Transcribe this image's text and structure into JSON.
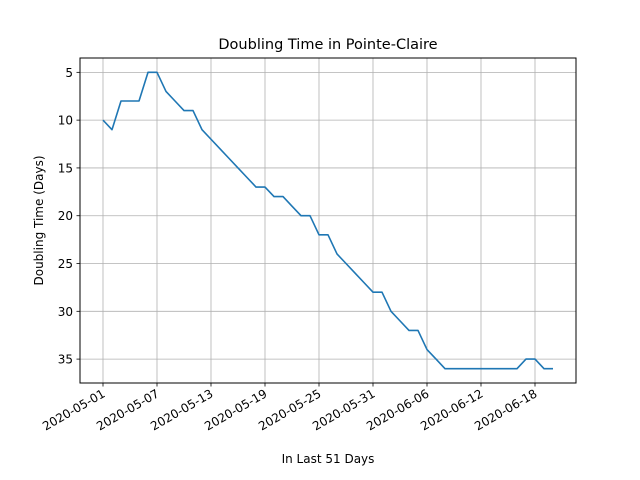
{
  "chart_data": {
    "type": "line",
    "title": "Doubling Time in  Pointe-Claire",
    "xlabel": "In Last 51 Days",
    "ylabel": "Doubling Time (Days)",
    "y_inverted": true,
    "ylim": [
      37.5,
      3.5
    ],
    "y_ticks": [
      5,
      10,
      15,
      20,
      25,
      30,
      35
    ],
    "x_ticks": [
      "2020-05-01",
      "2020-05-07",
      "2020-05-13",
      "2020-05-19",
      "2020-05-25",
      "2020-05-31",
      "2020-06-06",
      "2020-06-12",
      "2020-06-18"
    ],
    "grid": true,
    "series_color": "#1f77b4",
    "series": [
      {
        "x": [
          "2020-05-01",
          "2020-05-02",
          "2020-05-03",
          "2020-05-04",
          "2020-05-05",
          "2020-05-06",
          "2020-05-07",
          "2020-05-08",
          "2020-05-09",
          "2020-05-10",
          "2020-05-11",
          "2020-05-12",
          "2020-05-13",
          "2020-05-14",
          "2020-05-15",
          "2020-05-16",
          "2020-05-17",
          "2020-05-18",
          "2020-05-19",
          "2020-05-20",
          "2020-05-21",
          "2020-05-22",
          "2020-05-23",
          "2020-05-24",
          "2020-05-25",
          "2020-05-26",
          "2020-05-27",
          "2020-05-28",
          "2020-05-29",
          "2020-05-30",
          "2020-05-31",
          "2020-06-01",
          "2020-06-02",
          "2020-06-03",
          "2020-06-04",
          "2020-06-05",
          "2020-06-06",
          "2020-06-07",
          "2020-06-08",
          "2020-06-09",
          "2020-06-10",
          "2020-06-11",
          "2020-06-12",
          "2020-06-13",
          "2020-06-14",
          "2020-06-15",
          "2020-06-16",
          "2020-06-17",
          "2020-06-18",
          "2020-06-19",
          "2020-06-20"
        ],
        "values": [
          10,
          11,
          8,
          8,
          8,
          5,
          5,
          7,
          8,
          9,
          9,
          11,
          12,
          13,
          14,
          15,
          16,
          17,
          17,
          18,
          18,
          19,
          20,
          20,
          22,
          22,
          24,
          25,
          26,
          27,
          28,
          28,
          30,
          31,
          32,
          32,
          34,
          35,
          36,
          36,
          36,
          36,
          36,
          36,
          36,
          36,
          36,
          35,
          35,
          36,
          36
        ]
      }
    ]
  }
}
